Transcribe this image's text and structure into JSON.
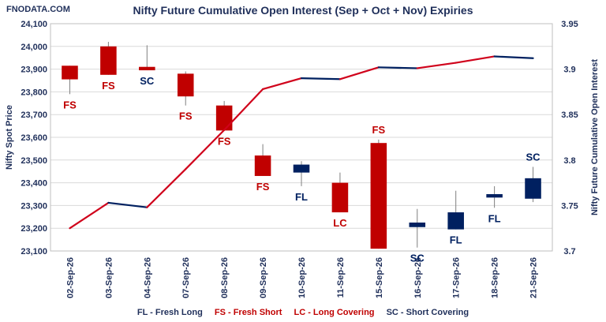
{
  "brand": "FNODATA.COM",
  "chart_data": {
    "type": "candlestick+line",
    "title": "Nifty Future Cumulative Open Interest (Sep + Oct + Nov) Expiries",
    "y_left_label": "Nifty Spot Price",
    "y_right_label": "Nifty Future Cumulative Open Interest",
    "y_left_lim": [
      23100,
      24100
    ],
    "y_left_ticks": [
      "23,100",
      "23,200",
      "23,300",
      "23,400",
      "23,500",
      "23,600",
      "23,700",
      "23,800",
      "23,900",
      "24,000",
      "24,100"
    ],
    "y_right_lim": [
      3.7,
      3.95
    ],
    "y_right_ticks": [
      "3.7",
      "3.75",
      "3.8",
      "3.85",
      "3.9",
      "3.95"
    ],
    "categories": [
      "02-Sep-26",
      "03-Sep-26",
      "04-Sep-26",
      "07-Sep-26",
      "08-Sep-26",
      "09-Sep-26",
      "10-Sep-26",
      "11-Sep-26",
      "15-Sep-26",
      "16-Sep-26",
      "17-Sep-26",
      "18-Sep-26",
      "21-Sep-26"
    ],
    "candles": [
      {
        "open": 23915,
        "close": 23855,
        "high": 23915,
        "low": 23790,
        "label": "FS"
      },
      {
        "open": 24000,
        "close": 23875,
        "high": 24020,
        "low": 23875,
        "label": "FS"
      },
      {
        "open": 23910,
        "close": 23895,
        "high": 24005,
        "low": 23895,
        "label": "SC"
      },
      {
        "open": 23880,
        "close": 23780,
        "high": 23890,
        "low": 23740,
        "label": "FS"
      },
      {
        "open": 23740,
        "close": 23630,
        "high": 23760,
        "low": 23630,
        "label": "FS"
      },
      {
        "open": 23520,
        "close": 23430,
        "high": 23570,
        "low": 23430,
        "label": "FS"
      },
      {
        "open": 23445,
        "close": 23480,
        "high": 23495,
        "low": 23385,
        "label": "FL"
      },
      {
        "open": 23400,
        "close": 23270,
        "high": 23445,
        "low": 23270,
        "label": "LC"
      },
      {
        "open": 23575,
        "close": 23110,
        "high": 23590,
        "low": 23110,
        "label": "FS"
      },
      {
        "open": 23205,
        "close": 23225,
        "high": 23285,
        "low": 23115,
        "label": "SC"
      },
      {
        "open": 23195,
        "close": 23270,
        "high": 23365,
        "low": 23195,
        "label": "FL"
      },
      {
        "open": 23335,
        "close": 23350,
        "high": 23385,
        "low": 23290,
        "label": "FL"
      },
      {
        "open": 23330,
        "close": 23420,
        "high": 23470,
        "low": 23315,
        "label": "SC"
      }
    ],
    "open_interest": [
      3.725,
      3.753,
      3.748,
      3.79,
      3.833,
      3.878,
      3.89,
      3.889,
      3.902,
      3.901,
      3.907,
      3.914,
      3.912
    ],
    "legend": [
      {
        "text": "FL - Fresh Long",
        "color": "#1f2f5a"
      },
      {
        "text": "FS - Fresh Short",
        "color": "#c00000"
      },
      {
        "text": "LC - Long Covering",
        "color": "#c00000"
      },
      {
        "text": "SC - Short Covering",
        "color": "#1f2f5a"
      }
    ],
    "colors": {
      "bearish": "#c00000",
      "bullish": "#002060",
      "text_dark": "#1f2f5a",
      "line_up": "#d0021b",
      "line_down": "#002060",
      "grid": "#d9d9d9"
    }
  }
}
